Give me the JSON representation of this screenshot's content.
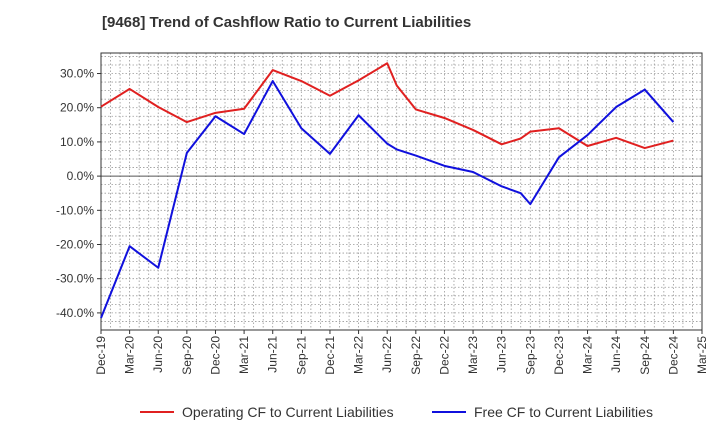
{
  "chart_data": {
    "type": "line",
    "title": "[9468]  Trend of Cashflow Ratio to Current Liabilities",
    "xlabel": "",
    "ylabel": "",
    "ylim": [
      -45,
      36
    ],
    "yticks": [
      30,
      20,
      10,
      0,
      -10,
      -20,
      -30,
      -40
    ],
    "ytick_labels": [
      "30.0%",
      "20.0%",
      "10.0%",
      "0.0%",
      "-10.0%",
      "-20.0%",
      "-30.0%",
      "-40.0%"
    ],
    "xtick_labels": [
      "Dec-19",
      "Mar-20",
      "Jun-20",
      "Sep-20",
      "Dec-20",
      "Mar-21",
      "Jun-21",
      "Sep-21",
      "Dec-21",
      "Mar-22",
      "Jun-22",
      "Sep-22",
      "Dec-22",
      "Mar-23",
      "Jun-23",
      "Sep-23",
      "Dec-23",
      "Mar-24",
      "Jun-24",
      "Sep-24",
      "Dec-24",
      "Mar-25"
    ],
    "grid": true,
    "legend_position": "bottom",
    "series": [
      {
        "name": "Operating CF to Current Liabilities",
        "color": "#e02020",
        "points": [
          [
            "Dec-19",
            20.3
          ],
          [
            "Mar-20",
            25.5
          ],
          [
            "Jun-20",
            20.2
          ],
          [
            "Sep-20",
            15.8
          ],
          [
            "Dec-20",
            18.5
          ],
          [
            "Mar-21",
            19.7
          ],
          [
            "Jun-21",
            31.0
          ],
          [
            "Sep-21",
            27.8
          ],
          [
            "Dec-21",
            23.5
          ],
          [
            "Mar-22",
            28.0
          ],
          [
            "Jun-22",
            33.0
          ],
          [
            "Jul-22",
            26.5
          ],
          [
            "Sep-22",
            19.5
          ],
          [
            "Dec-22",
            17.0
          ],
          [
            "Mar-23",
            13.5
          ],
          [
            "Jun-23",
            9.3
          ],
          [
            "Aug-23",
            11.0
          ],
          [
            "Sep-23",
            13.0
          ],
          [
            "Dec-23",
            14.0
          ],
          [
            "Mar-24",
            8.8
          ],
          [
            "Jun-24",
            11.2
          ],
          [
            "Sep-24",
            8.2
          ],
          [
            "Dec-24",
            10.4
          ]
        ]
      },
      {
        "name": "Free CF to Current Liabilities",
        "color": "#1010dd",
        "points": [
          [
            "Dec-19",
            -41.5
          ],
          [
            "Mar-20",
            -20.5
          ],
          [
            "Jun-20",
            -26.8
          ],
          [
            "Sep-20",
            6.8
          ],
          [
            "Dec-20",
            17.5
          ],
          [
            "Mar-21",
            12.3
          ],
          [
            "Jun-21",
            27.8
          ],
          [
            "Sep-21",
            14.0
          ],
          [
            "Dec-21",
            6.5
          ],
          [
            "Mar-22",
            17.8
          ],
          [
            "Jun-22",
            9.5
          ],
          [
            "Jul-22",
            7.8
          ],
          [
            "Sep-22",
            6.0
          ],
          [
            "Dec-22",
            3.0
          ],
          [
            "Mar-23",
            1.2
          ],
          [
            "Jun-23",
            -3.0
          ],
          [
            "Aug-23",
            -5.0
          ],
          [
            "Sep-23",
            -8.2
          ],
          [
            "Dec-23",
            5.5
          ],
          [
            "Mar-24",
            12.0
          ],
          [
            "Jun-24",
            20.2
          ],
          [
            "Sep-24",
            25.3
          ],
          [
            "Dec-24",
            15.8
          ]
        ]
      }
    ]
  }
}
